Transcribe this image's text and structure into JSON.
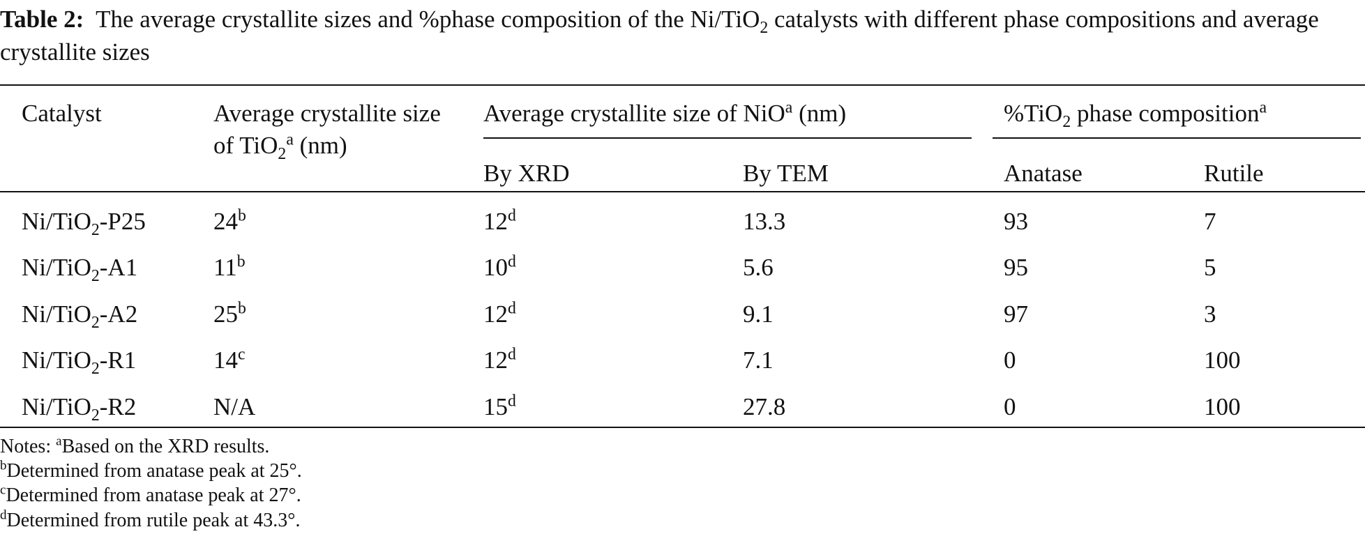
{
  "caption": {
    "label": "Table 2:",
    "text": [
      "The average crystallite sizes and %phase composition of the Ni/TiO",
      "2",
      " catalysts with different phase compositions and average crystallite sizes"
    ]
  },
  "table": {
    "header": {
      "catalyst": "Catalyst",
      "tio2_size": [
        "Average crystallite size of TiO",
        "2",
        "a",
        " (nm)"
      ],
      "nio_size": [
        "Average crystallite size of NiO",
        "a",
        " (nm)"
      ],
      "by_xrd": "By XRD",
      "by_tem": "By TEM",
      "phase": [
        "%TiO",
        "2",
        " phase composition",
        "a"
      ],
      "anatase": "Anatase",
      "rutile": "Rutile"
    },
    "rows": [
      {
        "catalyst": [
          "Ni/TiO",
          "2",
          "-P25"
        ],
        "tio2_size": 24,
        "tio2_note": "b",
        "xrd": 12,
        "xrd_note": "d",
        "tem": 13.3,
        "anatase": 93,
        "rutile": 7
      },
      {
        "catalyst": [
          "Ni/TiO",
          "2",
          "-A1"
        ],
        "tio2_size": 11,
        "tio2_note": "b",
        "xrd": 10,
        "xrd_note": "d",
        "tem": 5.6,
        "anatase": 95,
        "rutile": 5
      },
      {
        "catalyst": [
          "Ni/TiO",
          "2",
          "-A2"
        ],
        "tio2_size": 25,
        "tio2_note": "b",
        "xrd": 12,
        "xrd_note": "d",
        "tem": 9.1,
        "anatase": 97,
        "rutile": 3
      },
      {
        "catalyst": [
          "Ni/TiO",
          "2",
          "-R1"
        ],
        "tio2_size": 14,
        "tio2_note": "c",
        "xrd": 12,
        "xrd_note": "d",
        "tem": 7.1,
        "anatase": 0,
        "rutile": 100
      },
      {
        "catalyst": [
          "Ni/TiO",
          "2",
          "-R2"
        ],
        "tio2_size": "N/A",
        "xrd": 15,
        "xrd_note": "d",
        "tem": 27.8,
        "anatase": 0,
        "rutile": 100
      }
    ]
  },
  "notes": [
    {
      "prefix": "Notes: ",
      "mark": "a",
      "text": "Based on the XRD results."
    },
    {
      "mark": "b",
      "text": "Determined from anatase peak at 25°."
    },
    {
      "mark": "c",
      "text": "Determined from anatase peak at 27°."
    },
    {
      "mark": "d",
      "text": "Determined from rutile peak at 43.3°."
    }
  ]
}
